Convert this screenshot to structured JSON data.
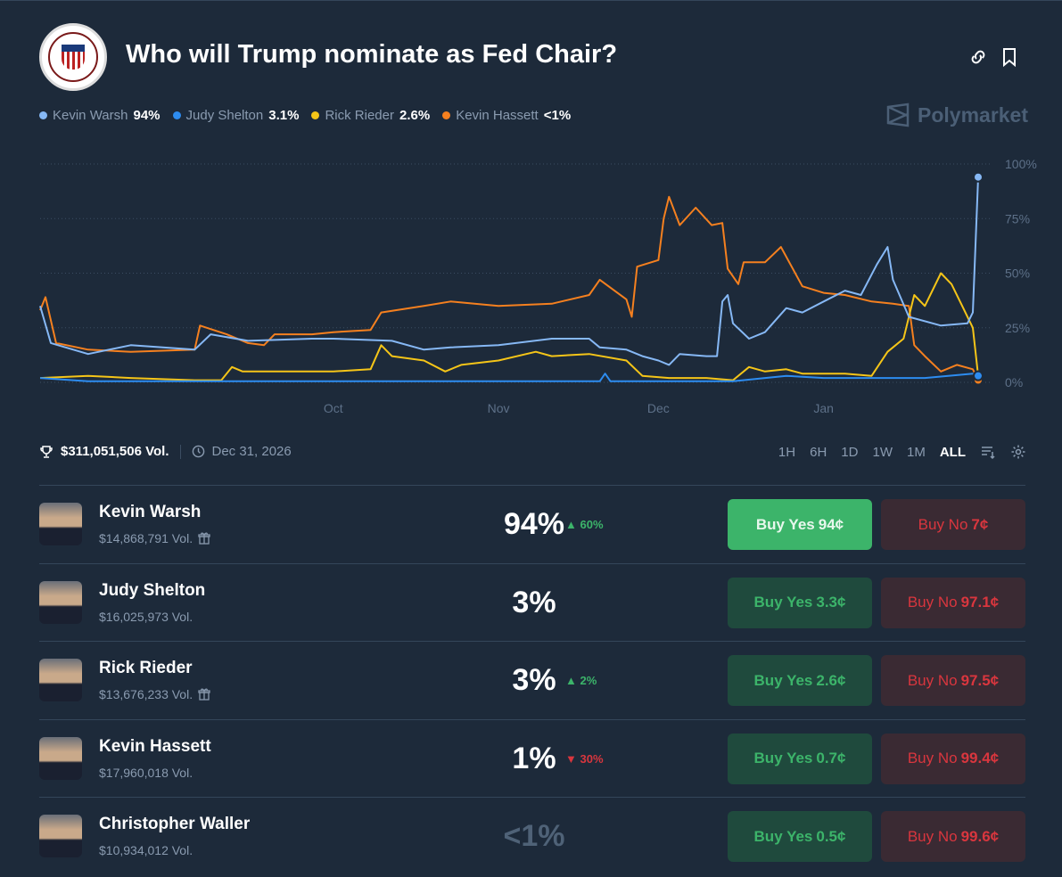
{
  "header": {
    "title": "Who will Trump nominate as Fed Chair?",
    "logo_text": "Board of Governors of the Federal Reserve System",
    "brand": "Polymarket",
    "link_icon": "link-icon",
    "bookmark_icon": "bookmark-icon"
  },
  "legend": [
    {
      "name": "Kevin Warsh",
      "value": "94%",
      "color": "#86b8f5"
    },
    {
      "name": "Judy Shelton",
      "value": "3.1%",
      "color": "#2d8cf0"
    },
    {
      "name": "Rick Rieder",
      "value": "2.6%",
      "color": "#f5c518"
    },
    {
      "name": "Kevin Hassett",
      "value": "<1%",
      "color": "#f5801f"
    }
  ],
  "stats": {
    "volume": "$311,051,506 Vol.",
    "end_date": "Dec 31, 2026"
  },
  "ranges": [
    "1H",
    "6H",
    "1D",
    "1W",
    "1M",
    "ALL"
  ],
  "active_range": "ALL",
  "chart_data": {
    "type": "line",
    "x_range": [
      "2025-08-07",
      "2026-01-30"
    ],
    "ylim": [
      0,
      100
    ],
    "y_ticks": [
      "100%",
      "75%",
      "50%",
      "25%",
      "0%"
    ],
    "y_tick_values": [
      100,
      75,
      50,
      25,
      0
    ],
    "x_ticks": [
      {
        "label": "Oct",
        "date": "2025-10-01"
      },
      {
        "label": "Nov",
        "date": "2025-11-01"
      },
      {
        "label": "Dec",
        "date": "2025-12-01"
      },
      {
        "label": "Jan",
        "date": "2026-01-01"
      }
    ],
    "grid": "horizontal dotted",
    "legend_placement": "top-left",
    "series": [
      {
        "name": "Kevin Hassett",
        "color": "#f5801f",
        "points": [
          [
            "2025-08-07",
            33
          ],
          [
            "2025-08-08",
            39
          ],
          [
            "2025-08-10",
            18
          ],
          [
            "2025-08-16",
            15
          ],
          [
            "2025-08-24",
            14
          ],
          [
            "2025-09-05",
            15
          ],
          [
            "2025-09-06",
            26
          ],
          [
            "2025-09-11",
            22
          ],
          [
            "2025-09-15",
            18
          ],
          [
            "2025-09-18",
            17
          ],
          [
            "2025-09-20",
            22
          ],
          [
            "2025-09-27",
            22
          ],
          [
            "2025-10-01",
            23
          ],
          [
            "2025-10-08",
            24
          ],
          [
            "2025-10-10",
            32
          ],
          [
            "2025-10-18",
            35
          ],
          [
            "2025-10-23",
            37
          ],
          [
            "2025-11-01",
            35
          ],
          [
            "2025-11-11",
            36
          ],
          [
            "2025-11-18",
            40
          ],
          [
            "2025-11-20",
            47
          ],
          [
            "2025-11-25",
            38
          ],
          [
            "2025-11-26",
            30
          ],
          [
            "2025-11-27",
            53
          ],
          [
            "2025-12-01",
            56
          ],
          [
            "2025-12-02",
            75
          ],
          [
            "2025-12-03",
            85
          ],
          [
            "2025-12-05",
            72
          ],
          [
            "2025-12-08",
            80
          ],
          [
            "2025-12-11",
            72
          ],
          [
            "2025-12-13",
            73
          ],
          [
            "2025-12-14",
            52
          ],
          [
            "2025-12-16",
            45
          ],
          [
            "2025-12-17",
            55
          ],
          [
            "2025-12-21",
            55
          ],
          [
            "2025-12-24",
            62
          ],
          [
            "2025-12-28",
            44
          ],
          [
            "2026-01-01",
            41
          ],
          [
            "2026-01-05",
            40
          ],
          [
            "2026-01-10",
            37
          ],
          [
            "2026-01-14",
            36
          ],
          [
            "2026-01-17",
            35
          ],
          [
            "2026-01-18",
            17
          ],
          [
            "2026-01-20",
            12
          ],
          [
            "2026-01-23",
            5
          ],
          [
            "2026-01-26",
            8
          ],
          [
            "2026-01-29",
            6
          ],
          [
            "2026-01-30",
            1
          ]
        ]
      },
      {
        "name": "Rick Rieder",
        "color": "#f5c518",
        "points": [
          [
            "2025-08-07",
            2
          ],
          [
            "2025-08-16",
            3
          ],
          [
            "2025-08-24",
            2
          ],
          [
            "2025-09-05",
            1
          ],
          [
            "2025-09-10",
            1
          ],
          [
            "2025-09-12",
            7
          ],
          [
            "2025-09-14",
            5
          ],
          [
            "2025-09-27",
            5
          ],
          [
            "2025-10-01",
            5
          ],
          [
            "2025-10-08",
            6
          ],
          [
            "2025-10-10",
            17
          ],
          [
            "2025-10-12",
            12
          ],
          [
            "2025-10-18",
            10
          ],
          [
            "2025-10-22",
            5
          ],
          [
            "2025-10-25",
            8
          ],
          [
            "2025-11-01",
            10
          ],
          [
            "2025-11-08",
            14
          ],
          [
            "2025-11-11",
            12
          ],
          [
            "2025-11-18",
            13
          ],
          [
            "2025-11-25",
            10
          ],
          [
            "2025-11-28",
            3
          ],
          [
            "2025-12-03",
            2
          ],
          [
            "2025-12-10",
            2
          ],
          [
            "2025-12-15",
            1
          ],
          [
            "2025-12-18",
            7
          ],
          [
            "2025-12-21",
            5
          ],
          [
            "2025-12-25",
            6
          ],
          [
            "2025-12-28",
            4
          ],
          [
            "2026-01-05",
            4
          ],
          [
            "2026-01-10",
            3
          ],
          [
            "2026-01-13",
            14
          ],
          [
            "2026-01-16",
            20
          ],
          [
            "2026-01-18",
            40
          ],
          [
            "2026-01-20",
            35
          ],
          [
            "2026-01-23",
            50
          ],
          [
            "2026-01-25",
            45
          ],
          [
            "2026-01-27",
            35
          ],
          [
            "2026-01-29",
            25
          ],
          [
            "2026-01-30",
            3
          ]
        ]
      },
      {
        "name": "Judy Shelton",
        "color": "#2d8cf0",
        "points": [
          [
            "2025-08-07",
            2
          ],
          [
            "2025-08-16",
            0.5
          ],
          [
            "2025-09-05",
            0.5
          ],
          [
            "2025-10-01",
            0.5
          ],
          [
            "2025-11-20",
            0.5
          ],
          [
            "2025-11-21",
            4
          ],
          [
            "2025-11-22",
            0.5
          ],
          [
            "2025-12-15",
            0.5
          ],
          [
            "2025-12-25",
            3
          ],
          [
            "2026-01-01",
            2
          ],
          [
            "2026-01-10",
            2
          ],
          [
            "2026-01-20",
            2
          ],
          [
            "2026-01-29",
            4
          ],
          [
            "2026-01-30",
            3
          ]
        ]
      },
      {
        "name": "Kevin Warsh",
        "color": "#86b8f5",
        "points": [
          [
            "2025-08-07",
            35
          ],
          [
            "2025-08-09",
            18
          ],
          [
            "2025-08-16",
            13
          ],
          [
            "2025-08-24",
            17
          ],
          [
            "2025-09-05",
            15
          ],
          [
            "2025-09-08",
            22
          ],
          [
            "2025-09-15",
            19
          ],
          [
            "2025-09-27",
            20
          ],
          [
            "2025-10-01",
            20
          ],
          [
            "2025-10-12",
            19
          ],
          [
            "2025-10-18",
            15
          ],
          [
            "2025-10-23",
            16
          ],
          [
            "2025-11-01",
            17
          ],
          [
            "2025-11-11",
            20
          ],
          [
            "2025-11-18",
            20
          ],
          [
            "2025-11-20",
            16
          ],
          [
            "2025-11-25",
            15
          ],
          [
            "2025-11-28",
            12
          ],
          [
            "2025-12-01",
            10
          ],
          [
            "2025-12-03",
            8
          ],
          [
            "2025-12-05",
            13
          ],
          [
            "2025-12-10",
            12
          ],
          [
            "2025-12-12",
            12
          ],
          [
            "2025-12-13",
            37
          ],
          [
            "2025-12-14",
            40
          ],
          [
            "2025-12-15",
            27
          ],
          [
            "2025-12-18",
            20
          ],
          [
            "2025-12-21",
            23
          ],
          [
            "2025-12-25",
            34
          ],
          [
            "2025-12-28",
            32
          ],
          [
            "2026-01-01",
            37
          ],
          [
            "2026-01-05",
            42
          ],
          [
            "2026-01-08",
            40
          ],
          [
            "2026-01-11",
            54
          ],
          [
            "2026-01-13",
            62
          ],
          [
            "2026-01-14",
            47
          ],
          [
            "2026-01-17",
            30
          ],
          [
            "2026-01-23",
            26
          ],
          [
            "2026-01-28",
            27
          ],
          [
            "2026-01-29",
            32
          ],
          [
            "2026-01-30",
            94
          ]
        ]
      }
    ]
  },
  "outcomes": [
    {
      "name": "Kevin Warsh",
      "volume": "$14,868,791 Vol.",
      "gift": true,
      "pct": "94%",
      "change": "60%",
      "dir": "up",
      "yes_label": "Buy Yes",
      "yes_price": "94¢",
      "no_label": "Buy No",
      "no_price": "7¢"
    },
    {
      "name": "Judy Shelton",
      "volume": "$16,025,973 Vol.",
      "gift": false,
      "pct": "3%",
      "change": "",
      "dir": "",
      "yes_label": "Buy Yes",
      "yes_price": "3.3¢",
      "no_label": "Buy No",
      "no_price": "97.1¢"
    },
    {
      "name": "Rick Rieder",
      "volume": "$13,676,233 Vol.",
      "gift": true,
      "pct": "3%",
      "change": "2%",
      "dir": "up",
      "yes_label": "Buy Yes",
      "yes_price": "2.6¢",
      "no_label": "Buy No",
      "no_price": "97.5¢"
    },
    {
      "name": "Kevin Hassett",
      "volume": "$17,960,018 Vol.",
      "gift": false,
      "pct": "1%",
      "change": "30%",
      "dir": "down",
      "yes_label": "Buy Yes",
      "yes_price": "0.7¢",
      "no_label": "Buy No",
      "no_price": "99.4¢"
    },
    {
      "name": "Christopher Waller",
      "volume": "$10,934,012 Vol.",
      "gift": false,
      "pct": "<1%",
      "change": "",
      "dir": "",
      "yes_label": "Buy Yes",
      "yes_price": "0.5¢",
      "no_label": "Buy No",
      "no_price": "99.6¢"
    }
  ]
}
